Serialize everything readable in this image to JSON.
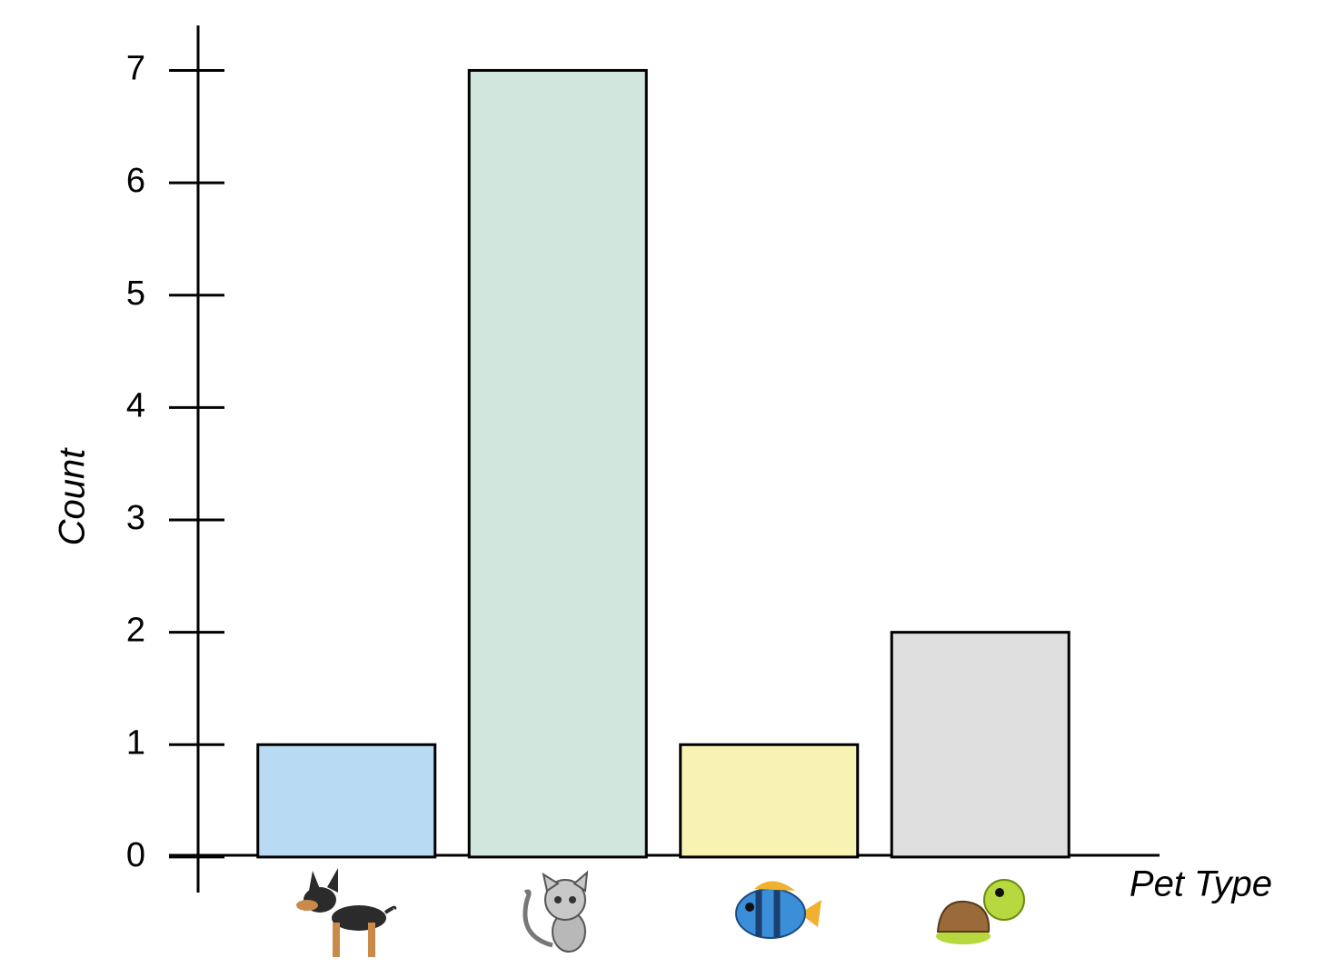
{
  "chart_data": {
    "type": "bar",
    "y_label": "Count",
    "x_label": "Pet Type",
    "categories": [
      null,
      null,
      null,
      null
    ],
    "values": [
      1,
      7,
      1,
      2
    ],
    "colors": [
      "#b8daf2",
      "#d1e6dc",
      "#f7f3b3",
      "#dedede"
    ],
    "ylim": [
      -0.3,
      7.4
    ],
    "yticks": [
      0,
      1,
      2,
      3,
      4,
      5,
      6,
      7
    ],
    "grid": false
  }
}
